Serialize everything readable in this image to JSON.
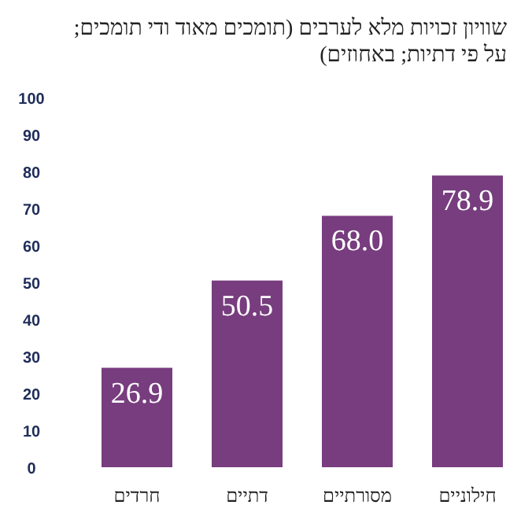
{
  "chart_data": {
    "type": "bar",
    "title": "שוויון זכויות מלא לערבים (תומכים מאוד ודי תומכים; על פי דתיות; באחוזים)",
    "categories": [
      "חרדים",
      "דתיים",
      "מסורתיים",
      "חילוניים"
    ],
    "values": [
      26.9,
      50.5,
      68.0,
      78.9
    ],
    "value_labels": [
      "26.9",
      "50.5",
      "68.0",
      "78.9"
    ],
    "color": "#773d7e",
    "ylim": [
      0,
      100
    ],
    "yticks": [
      0,
      10,
      20,
      30,
      40,
      50,
      60,
      70,
      80,
      90,
      100
    ],
    "grid": false
  }
}
